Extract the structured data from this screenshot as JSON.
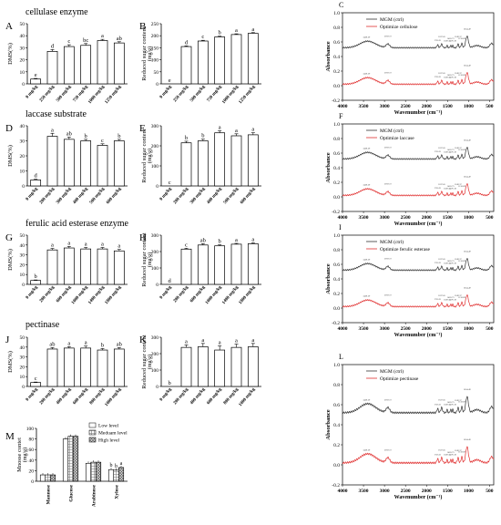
{
  "sections": {
    "cellulase": "cellulase enzyme",
    "laccase": "laccase substrate",
    "feae": "ferulic acid esterase enzyme",
    "pectinase": "pectinase"
  },
  "chart_data": [
    {
      "panel": "A",
      "type": "bar",
      "ylabel": "DMS(%)",
      "ylim": [
        0,
        50
      ],
      "yticks": [
        0,
        10,
        20,
        30,
        40,
        50
      ],
      "categories": [
        "0 mg/kg",
        "250 mg/kg",
        "500 mg/kg",
        "750 mg/kg",
        "1000 mg/kg",
        "1250 mg/kg"
      ],
      "values": [
        4,
        27,
        31,
        32,
        36,
        34
      ],
      "errors": [
        0.5,
        1.5,
        1.5,
        1.5,
        1,
        1
      ],
      "labels": [
        "e",
        "d",
        "c",
        "bc",
        "a",
        "ab"
      ]
    },
    {
      "panel": "B",
      "type": "bar",
      "ylabel": "Reduced sugar content",
      "yunit": "(mg/g)",
      "ylim": [
        0,
        250
      ],
      "yticks": [
        0,
        50,
        100,
        150,
        200,
        250
      ],
      "categories": [
        "0 mg/kg",
        "250 mg/kg",
        "500 mg/kg",
        "750 mg/kg",
        "1000 mg/kg",
        "1250 mg/kg"
      ],
      "values": [
        0,
        155,
        178,
        195,
        205,
        210
      ],
      "errors": [
        0,
        3,
        3,
        3,
        3,
        3
      ],
      "labels": [
        "e",
        "d",
        "c",
        "b",
        "a",
        "a"
      ]
    },
    {
      "panel": "D",
      "type": "bar",
      "ylabel": "DMS(%)",
      "ylim": [
        0,
        40
      ],
      "yticks": [
        0,
        10,
        20,
        30,
        40
      ],
      "categories": [
        "0 mg/kg",
        "200 mg/kg",
        "300 mg/kg",
        "400 mg/kg",
        "500 mg/kg",
        "600 mg/kg"
      ],
      "values": [
        4,
        33,
        31,
        30,
        27,
        30
      ],
      "errors": [
        0.5,
        2,
        1.5,
        1,
        1,
        1
      ],
      "labels": [
        "d",
        "a",
        "ab",
        "b",
        "c",
        "b"
      ]
    },
    {
      "panel": "E",
      "type": "bar",
      "ylabel": "Reduced sugar content",
      "yunit": "(mg/g)",
      "ylim": [
        0,
        300
      ],
      "yticks": [
        0,
        100,
        200,
        300
      ],
      "categories": [
        "0 mg/kg",
        "200 mg/kg",
        "300 mg/kg",
        "400 mg/kg",
        "500 mg/kg",
        "600 mg/kg"
      ],
      "values": [
        0,
        215,
        225,
        265,
        250,
        255
      ],
      "errors": [
        0,
        8,
        8,
        10,
        10,
        10
      ],
      "labels": [
        "c",
        "b",
        "b",
        "a",
        "a",
        "a"
      ]
    },
    {
      "panel": "G",
      "type": "bar",
      "ylabel": "DMS(%)",
      "ylim": [
        0,
        50
      ],
      "yticks": [
        0,
        10,
        20,
        30,
        40,
        50
      ],
      "categories": [
        "0 mg/kg",
        "200 mg/kg",
        "600 mg/kg",
        "1000 mg/kg",
        "1400 mg/kg",
        "1800 mg/kg"
      ],
      "values": [
        4,
        35,
        37,
        36,
        36,
        34
      ],
      "errors": [
        0.5,
        1.5,
        1.5,
        1.5,
        1.5,
        1.5
      ],
      "labels": [
        "b",
        "a",
        "a",
        "a",
        "a",
        "a"
      ]
    },
    {
      "panel": "H",
      "type": "bar",
      "ylabel": "Reduced sugar content",
      "yunit": "(mg/g)",
      "ylim": [
        0,
        300
      ],
      "yticks": [
        0,
        100,
        200,
        300
      ],
      "categories": [
        "0 mg/kg",
        "200 mg/kg",
        "600 mg/kg",
        "1000 mg/kg",
        "1400 mg/kg",
        "1800 mg/kg"
      ],
      "values": [
        0,
        215,
        240,
        235,
        245,
        248
      ],
      "errors": [
        0,
        5,
        8,
        6,
        5,
        5
      ],
      "labels": [
        "d",
        "c",
        "ab",
        "b",
        "a",
        "a"
      ]
    },
    {
      "panel": "J",
      "type": "bar",
      "ylabel": "DMS(%)",
      "ylim": [
        0,
        50
      ],
      "yticks": [
        0,
        10,
        20,
        30,
        40,
        50
      ],
      "categories": [
        "0 mg/kg",
        "200 mg/kg",
        "400 mg/kg",
        "600 mg/kg",
        "800 mg/kg",
        "1000 mg/kg"
      ],
      "values": [
        4,
        38,
        39,
        39,
        37,
        38
      ],
      "errors": [
        0.5,
        1.5,
        1.5,
        2,
        1.5,
        1.5
      ],
      "labels": [
        "c",
        "ab",
        "a",
        "a",
        "b",
        "ab"
      ]
    },
    {
      "panel": "K",
      "type": "bar",
      "ylabel": "Reduced sugar content",
      "yunit": "(mg/g)",
      "ylim": [
        0,
        300
      ],
      "yticks": [
        0,
        100,
        200,
        300
      ],
      "categories": [
        "0 mg/kg",
        "200 mg/kg",
        "400 mg/kg",
        "600 mg/kg",
        "800 mg/kg",
        "1000 mg/kg"
      ],
      "values": [
        0,
        238,
        242,
        222,
        238,
        242
      ],
      "errors": [
        0,
        15,
        20,
        25,
        20,
        20
      ],
      "labels": [
        "b",
        "a",
        "a",
        "a",
        "a",
        "a"
      ]
    },
    {
      "panel": "M",
      "type": "bar",
      "ylabel": "Mnosse contet",
      "yunit": "(mg/g)",
      "ylim": [
        0,
        100
      ],
      "yticks": [
        0,
        20,
        40,
        60,
        80,
        100
      ],
      "categories": [
        "Mannose",
        "Glucose",
        "Arabinose",
        "Xylose"
      ],
      "series": [
        {
          "name": "Low level",
          "values": [
            12,
            80,
            34,
            22
          ]
        },
        {
          "name": "Meduam level",
          "values": [
            12,
            85,
            36,
            21
          ]
        },
        {
          "name": "High level",
          "values": [
            12,
            85,
            36,
            26
          ]
        }
      ],
      "labels": [
        "",
        "",
        "",
        "b",
        "b",
        "a"
      ],
      "legend": "top-right"
    },
    {
      "panel": "C",
      "type": "line",
      "ylabel": "Absorbance",
      "xlabel": "Wavenumber (cm⁻¹)",
      "xlim": [
        4000,
        400
      ],
      "xticks": [
        4000,
        3500,
        3000,
        2500,
        2000,
        1500,
        1000,
        500
      ],
      "ylim": [
        -0.2,
        1.0
      ],
      "yticks": [
        -0.2,
        0.0,
        0.2,
        0.4,
        0.6,
        0.8,
        1.0
      ],
      "series": [
        {
          "name": "MGM (ctrl)",
          "color": "#333333",
          "offset": 0.5
        },
        {
          "name": "Optimize cellulose",
          "color": "#e03030",
          "offset": 0.0
        }
      ],
      "peaks": [
        "3428.39",
        "2919.72",
        "1736.21",
        "1637.05",
        "1509.14",
        "1426.75",
        "1376.18",
        "1249.37",
        "1158.89",
        "1034.49"
      ]
    },
    {
      "panel": "F",
      "type": "line",
      "ylabel": "Absorbance",
      "xlabel": "Wavenumber (cm⁻¹)",
      "xlim": [
        4000,
        400
      ],
      "xticks": [
        4000,
        3500,
        3000,
        2500,
        2000,
        1500,
        1000,
        500
      ],
      "ylim": [
        -0.2,
        1.0
      ],
      "yticks": [
        -0.2,
        0.0,
        0.2,
        0.4,
        0.6,
        0.8,
        1.0
      ],
      "series": [
        {
          "name": "MGM (ctrl)",
          "color": "#333333",
          "offset": 0.5
        },
        {
          "name": "Optimize laccase",
          "color": "#e03030",
          "offset": 0.0
        }
      ],
      "peaks": [
        "3428.39",
        "2919.72",
        "1736.21",
        "1637.05",
        "1509.14",
        "1426.75",
        "1376.18",
        "1249.37",
        "1158.89",
        "1034.49"
      ]
    },
    {
      "panel": "I",
      "type": "line",
      "ylabel": "Absorbance",
      "xlabel": "Wavenumber (cm⁻¹)",
      "xlim": [
        4000,
        400
      ],
      "xticks": [
        4000,
        3500,
        3000,
        2500,
        2000,
        1500,
        1000,
        500
      ],
      "ylim": [
        -0.2,
        1.0
      ],
      "yticks": [
        -0.2,
        0.0,
        0.2,
        0.4,
        0.6,
        0.8,
        1.0
      ],
      "series": [
        {
          "name": "MGM (ctrl)",
          "color": "#333333",
          "offset": 0.5
        },
        {
          "name": "Optimize ferulic esterase",
          "color": "#e03030",
          "offset": 0.0
        }
      ],
      "peaks": [
        "3428.39",
        "2919.72",
        "1736.21",
        "1637.05",
        "1509.14",
        "1426.75",
        "1376.18",
        "1249.37",
        "1158.89",
        "1034.49"
      ]
    },
    {
      "panel": "L",
      "type": "line",
      "ylabel": "Absorbance",
      "xlabel": "Wavenumber (cm⁻¹)",
      "xlim": [
        4000,
        400
      ],
      "xticks": [
        4000,
        3500,
        3000,
        2500,
        2000,
        1500,
        1000,
        500
      ],
      "ylim": [
        -0.2,
        1.0
      ],
      "yticks": [
        -0.2,
        0.0,
        0.2,
        0.4,
        0.6,
        0.8,
        1.0
      ],
      "series": [
        {
          "name": "MGM (ctrl)",
          "color": "#333333",
          "offset": 0.5
        },
        {
          "name": "Optimize pectinase",
          "color": "#e03030",
          "offset": 0.0
        }
      ],
      "peaks": [
        "3428.39",
        "2919.72",
        "1736.21",
        "1637.05",
        "1509.14",
        "1426.75",
        "1376.18",
        "1249.37",
        "1158.89",
        "1034.49"
      ]
    }
  ]
}
